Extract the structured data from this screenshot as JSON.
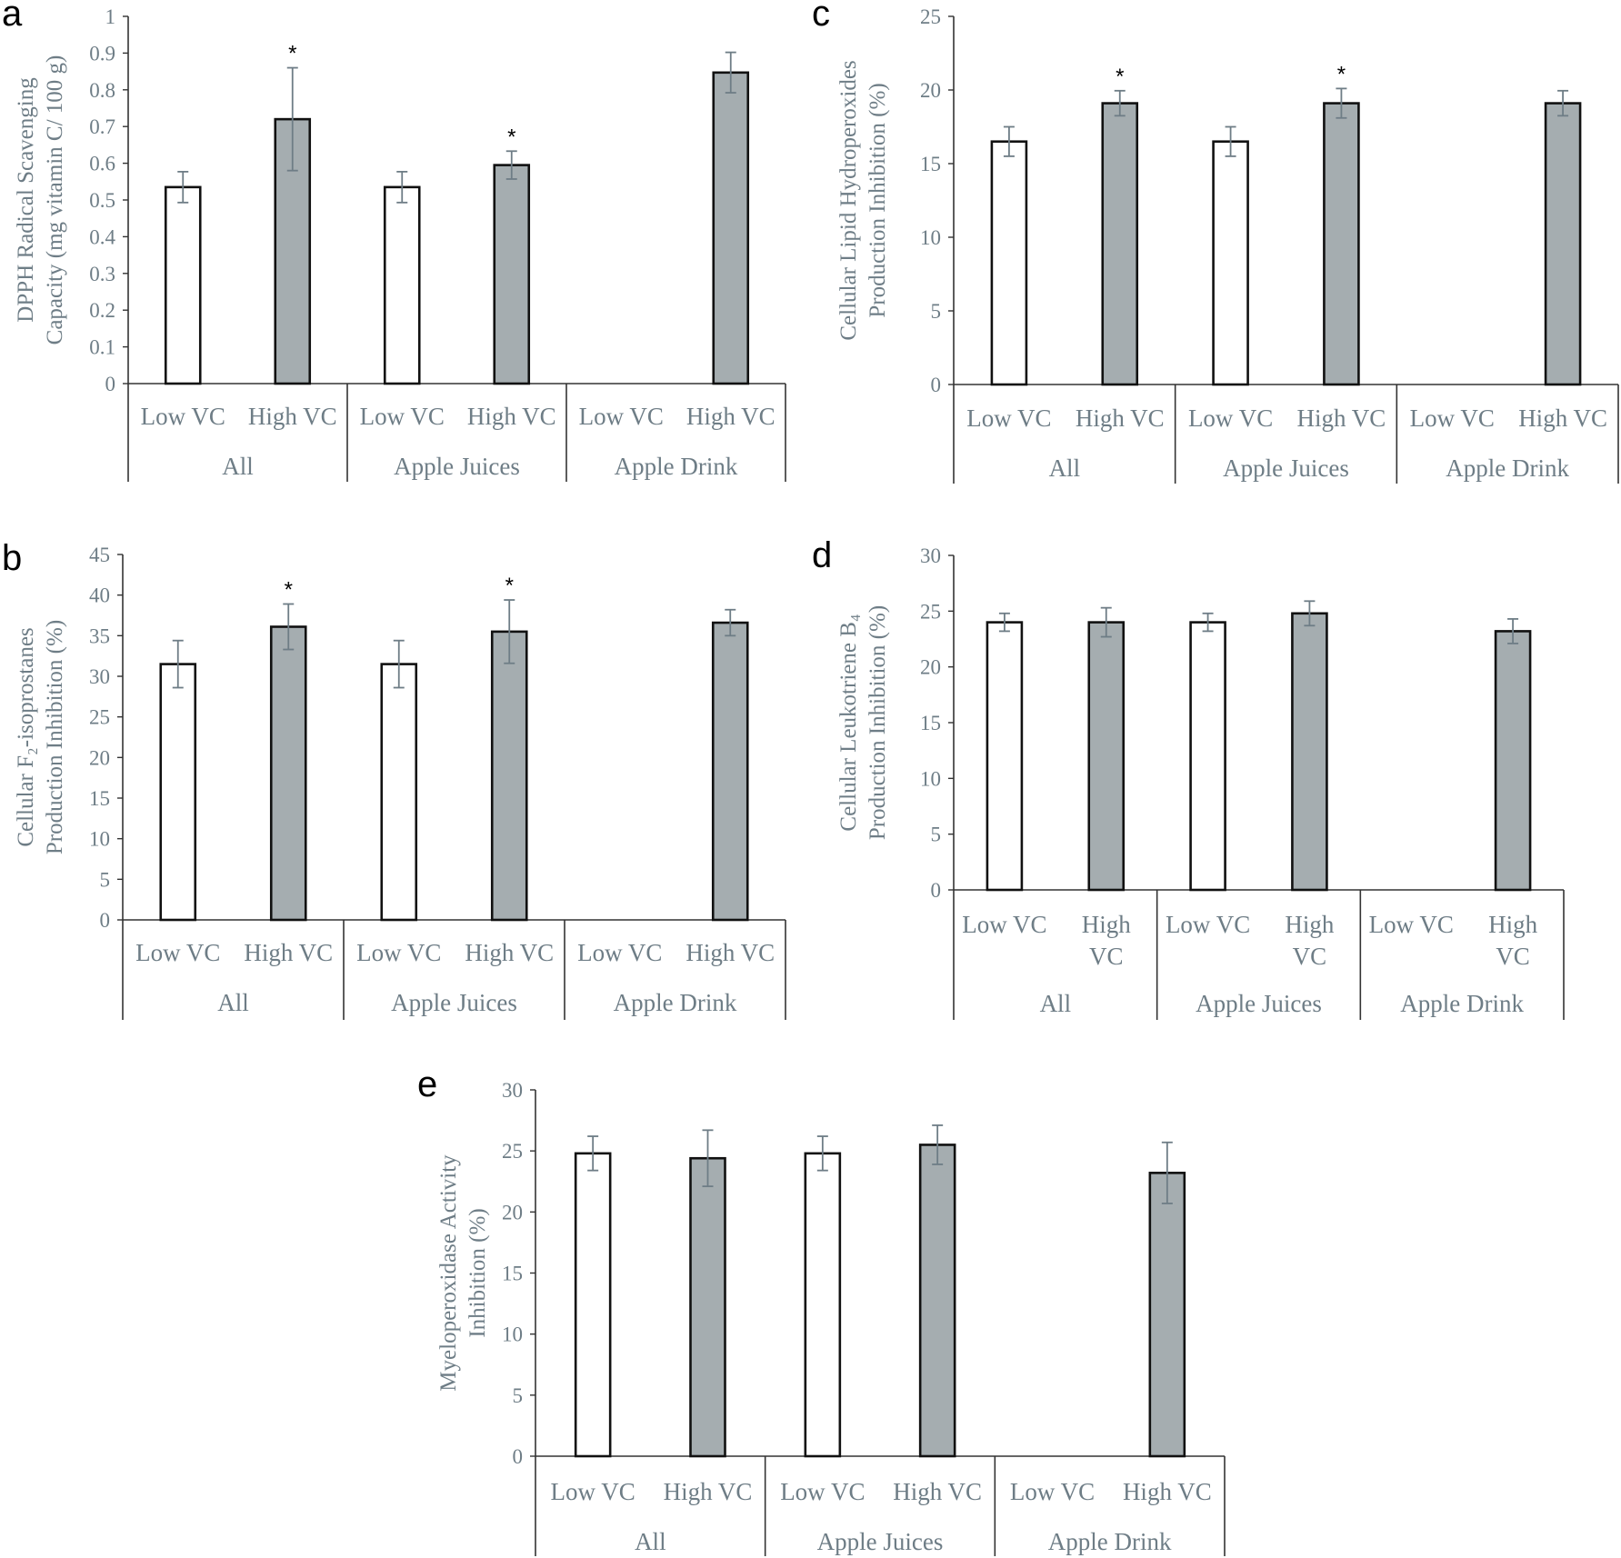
{
  "chart_data": [
    {
      "panel": "a",
      "type": "bar",
      "ylabel": [
        "DPPH Radical Scavenging",
        "Capacity (mg vitamin C/ 100 g)"
      ],
      "ylim": [
        0,
        1
      ],
      "yticks": [
        "0",
        "0.1",
        "0.2",
        "0.3",
        "0.4",
        "0.5",
        "0.6",
        "0.7",
        "0.8",
        "0.9",
        "1"
      ],
      "groups": [
        "All",
        "Apple Juices",
        "Apple Drink"
      ],
      "categories": [
        [
          "Low VC"
        ],
        [
          "High VC"
        ],
        [
          "Low VC"
        ],
        [
          "High VC"
        ],
        [
          "Low VC"
        ],
        [
          "High VC"
        ]
      ],
      "values": [
        0.535,
        0.72,
        0.535,
        0.595,
        null,
        0.847
      ],
      "errors": [
        0.042,
        0.14,
        0.042,
        0.038,
        null,
        0.055
      ],
      "significant": [
        false,
        true,
        false,
        true,
        false,
        false
      ],
      "significance_mark": "*",
      "colors": {
        "low": "#ffffff",
        "high": "#a5adb0"
      }
    },
    {
      "panel": "b",
      "type": "bar",
      "ylabel": [
        "Cellular F₂-isoprostanes",
        "Production Inhibition (%)"
      ],
      "ylim": [
        0,
        45
      ],
      "yticks": [
        "0",
        "5",
        "10",
        "15",
        "20",
        "25",
        "30",
        "35",
        "40",
        "45"
      ],
      "groups": [
        "All",
        "Apple Juices",
        "Apple Drink"
      ],
      "categories": [
        [
          "Low VC"
        ],
        [
          "High VC"
        ],
        [
          "Low VC"
        ],
        [
          "High VC"
        ],
        [
          "Low VC"
        ],
        [
          "High VC"
        ]
      ],
      "values": [
        31.5,
        36.1,
        31.5,
        35.5,
        null,
        36.6
      ],
      "errors": [
        2.9,
        2.8,
        2.9,
        3.9,
        null,
        1.6
      ],
      "significant": [
        false,
        true,
        false,
        true,
        false,
        false
      ],
      "significance_mark": "*",
      "colors": {
        "low": "#ffffff",
        "high": "#a5adb0"
      }
    },
    {
      "panel": "c",
      "type": "bar",
      "ylabel": [
        "Cellular Lipid Hydroperoxides",
        "Production Inhibition (%)"
      ],
      "ylim": [
        0,
        25
      ],
      "yticks": [
        "0",
        "5",
        "10",
        "15",
        "20",
        "25"
      ],
      "groups": [
        "All",
        "Apple Juices",
        "Apple Drink"
      ],
      "categories": [
        [
          "Low VC"
        ],
        [
          "High VC"
        ],
        [
          "Low VC"
        ],
        [
          "High VC"
        ],
        [
          "Low VC"
        ],
        [
          "High VC"
        ]
      ],
      "values": [
        16.5,
        19.1,
        16.5,
        19.1,
        null,
        19.1
      ],
      "errors": [
        1.0,
        0.85,
        1.0,
        1.0,
        null,
        0.85
      ],
      "significant": [
        false,
        true,
        false,
        true,
        false,
        false
      ],
      "significance_mark": "*",
      "colors": {
        "low": "#ffffff",
        "high": "#a5adb0"
      }
    },
    {
      "panel": "d",
      "type": "bar",
      "ylabel": [
        "Cellular Leukotriene B₄",
        "Production Inhibition (%)"
      ],
      "ylim": [
        0,
        30
      ],
      "yticks": [
        "0",
        "5",
        "10",
        "15",
        "20",
        "25",
        "30"
      ],
      "groups": [
        "All",
        "Apple Juices",
        "Apple Drink"
      ],
      "categories": [
        [
          "Low VC"
        ],
        [
          "High",
          "VC"
        ],
        [
          "Low VC"
        ],
        [
          "High",
          "VC"
        ],
        [
          "Low VC"
        ],
        [
          "High",
          "VC"
        ]
      ],
      "values": [
        24.0,
        24.0,
        24.0,
        24.8,
        null,
        23.2
      ],
      "errors": [
        0.8,
        1.3,
        0.8,
        1.1,
        null,
        1.1
      ],
      "significant": [
        false,
        false,
        false,
        false,
        false,
        false
      ],
      "significance_mark": "*",
      "colors": {
        "low": "#ffffff",
        "high": "#a5adb0"
      }
    },
    {
      "panel": "e",
      "type": "bar",
      "ylabel": [
        "Myeloperoxidase Activity",
        "Inhibition (%)"
      ],
      "ylim": [
        0,
        30
      ],
      "yticks": [
        "0",
        "5",
        "10",
        "15",
        "20",
        "25",
        "30"
      ],
      "groups": [
        "All",
        "Apple Juices",
        "Apple Drink"
      ],
      "categories": [
        [
          "Low VC"
        ],
        [
          "High VC"
        ],
        [
          "Low VC"
        ],
        [
          "High VC"
        ],
        [
          "Low VC"
        ],
        [
          "High VC"
        ]
      ],
      "values": [
        24.8,
        24.4,
        24.8,
        25.5,
        null,
        23.2
      ],
      "errors": [
        1.4,
        2.3,
        1.4,
        1.6,
        null,
        2.5
      ],
      "significant": [
        false,
        false,
        false,
        false,
        false,
        false
      ],
      "significance_mark": "*",
      "colors": {
        "low": "#ffffff",
        "high": "#a5adb0"
      }
    }
  ]
}
